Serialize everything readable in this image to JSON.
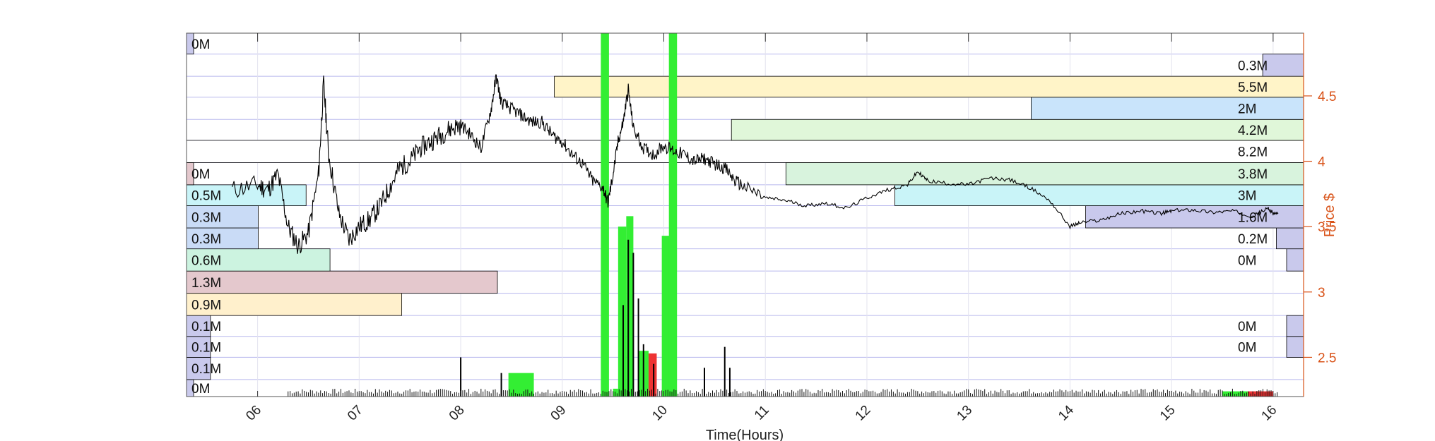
{
  "chart_data": {
    "type": "bar",
    "xlabel": "Time(Hours)",
    "ylabel": "Price $",
    "xlim": [
      5.3,
      16.3
    ],
    "ylim": [
      2.2,
      4.98
    ],
    "x_ticks": [
      6,
      7,
      8,
      9,
      10,
      11,
      12,
      13,
      14,
      15,
      16
    ],
    "x_tick_labels": [
      "06",
      "07",
      "08",
      "09",
      "10",
      "11",
      "12",
      "13",
      "14",
      "15",
      "16"
    ],
    "y_ticks": [
      2.5,
      3,
      3.5,
      4,
      4.5
    ],
    "y_tick_labels": [
      "2.5",
      "3",
      "3.5",
      "4",
      "4.5"
    ],
    "grid": true,
    "colors": {
      "price_line": "#000000",
      "volume_up": "#33ee33",
      "volume_down": "#ee3333",
      "axis_right": "#d95319",
      "grid": "#b8b8ee",
      "band_border": "#000000"
    },
    "price_levels": [
      2.2,
      2.33,
      2.5,
      2.66,
      2.82,
      2.99,
      3.16,
      3.33,
      3.49,
      3.66,
      3.82,
      3.99,
      4.16,
      4.32,
      4.49,
      4.65,
      4.82,
      4.98
    ],
    "left_profile": [
      {
        "label": "0M",
        "low": 2.2,
        "high": 2.33,
        "value": 0.02,
        "color": "#c9c9ec"
      },
      {
        "label": "0.1M",
        "low": 2.33,
        "high": 2.5,
        "value": 0.1,
        "color": "#c9c9ec"
      },
      {
        "label": "0.1M",
        "low": 2.5,
        "high": 2.66,
        "value": 0.1,
        "color": "#c9c9ec"
      },
      {
        "label": "0.1M",
        "low": 2.66,
        "high": 2.82,
        "value": 0.1,
        "color": "#c9c9ec"
      },
      {
        "label": "0.9M",
        "low": 2.82,
        "high": 2.99,
        "value": 0.9,
        "color": "#fff0cc"
      },
      {
        "label": "1.3M",
        "low": 2.99,
        "high": 3.16,
        "value": 1.3,
        "color": "#e4c8cd"
      },
      {
        "label": "0.6M",
        "low": 3.16,
        "high": 3.33,
        "value": 0.6,
        "color": "#ccf3e0"
      },
      {
        "label": "0.3M",
        "low": 3.33,
        "high": 3.49,
        "value": 0.3,
        "color": "#c9dbf6"
      },
      {
        "label": "0.3M",
        "low": 3.49,
        "high": 3.66,
        "value": 0.3,
        "color": "#c9dbf6"
      },
      {
        "label": "0.5M",
        "low": 3.66,
        "high": 3.82,
        "value": 0.5,
        "color": "#c9f4f8"
      },
      {
        "label": "0M",
        "low": 3.82,
        "high": 3.99,
        "value": 0.02,
        "color": "#e4c8cd"
      },
      {
        "label": "0M",
        "low": 4.82,
        "high": 4.98,
        "value": 0.02,
        "color": "#c9c9ec"
      }
    ],
    "right_profile": [
      {
        "label": "0M",
        "low": 2.5,
        "high": 2.66,
        "value": 0.05,
        "color": "#c9c9ec"
      },
      {
        "label": "0M",
        "low": 2.66,
        "high": 2.82,
        "value": 0.05,
        "color": "#c9c9ec"
      },
      {
        "label": "0M",
        "low": 3.16,
        "high": 3.33,
        "value": 0.05,
        "color": "#c9c9ec"
      },
      {
        "label": "0.2M",
        "low": 3.33,
        "high": 3.49,
        "value": 0.2,
        "color": "#c9c9ec"
      },
      {
        "label": "1.6M",
        "low": 3.49,
        "high": 3.66,
        "value": 1.6,
        "color": "#c9c9ec"
      },
      {
        "label": "3M",
        "low": 3.66,
        "high": 3.82,
        "value": 3.0,
        "color": "#c9f4f8"
      },
      {
        "label": "3.8M",
        "low": 3.82,
        "high": 3.99,
        "value": 3.8,
        "color": "#d8f3dd"
      },
      {
        "label": "8.2M",
        "low": 3.99,
        "high": 4.16,
        "value": 8.2,
        "color": "#ffffff"
      },
      {
        "label": "4.2M",
        "low": 4.16,
        "high": 4.32,
        "value": 4.2,
        "color": "#e0f7d9"
      },
      {
        "label": "2M",
        "low": 4.32,
        "high": 4.49,
        "value": 2.0,
        "color": "#c9e4fb"
      },
      {
        "label": "5.5M",
        "low": 4.49,
        "high": 4.65,
        "value": 5.5,
        "color": "#fff4c8"
      },
      {
        "label": "0.3M",
        "low": 4.65,
        "high": 4.82,
        "value": 0.3,
        "color": "#c9c9ec"
      }
    ],
    "left_profile_scale_M": 1.3,
    "right_profile_scale_M": 8.2,
    "price_series": {
      "x": [
        5.75,
        6.0,
        6.1,
        6.2,
        6.3,
        6.4,
        6.5,
        6.6,
        6.65,
        6.7,
        6.8,
        6.9,
        7.0,
        7.1,
        7.2,
        7.3,
        7.4,
        7.5,
        7.6,
        7.7,
        7.8,
        7.9,
        8.0,
        8.1,
        8.2,
        8.3,
        8.35,
        8.4,
        8.5,
        8.6,
        8.7,
        8.8,
        8.9,
        9.0,
        9.1,
        9.2,
        9.3,
        9.4,
        9.45,
        9.5,
        9.55,
        9.6,
        9.65,
        9.7,
        9.8,
        9.9,
        10.0,
        10.1,
        10.2,
        10.3,
        10.4,
        10.5,
        10.6,
        10.7,
        10.8,
        11.0,
        11.2,
        11.4,
        11.6,
        11.8,
        12.0,
        12.2,
        12.4,
        12.5,
        12.6,
        12.8,
        13.0,
        13.2,
        13.4,
        13.6,
        13.8,
        14.0,
        14.1,
        14.3,
        14.5,
        14.7,
        14.9,
        15.0,
        15.2,
        15.4,
        15.6,
        15.8,
        15.95,
        16.0,
        16.05
      ],
      "y": [
        3.78,
        3.82,
        3.78,
        3.9,
        3.5,
        3.35,
        3.45,
        3.9,
        4.6,
        4.05,
        3.6,
        3.4,
        3.5,
        3.55,
        3.65,
        3.8,
        3.95,
        4.0,
        4.1,
        4.15,
        4.2,
        4.25,
        4.28,
        4.2,
        4.1,
        4.4,
        4.65,
        4.45,
        4.4,
        4.35,
        4.3,
        4.3,
        4.2,
        4.15,
        4.05,
        3.98,
        3.85,
        3.8,
        3.68,
        3.9,
        4.15,
        4.3,
        4.55,
        4.25,
        4.1,
        4.05,
        4.12,
        4.08,
        4.05,
        4.0,
        4.02,
        3.98,
        3.95,
        3.85,
        3.8,
        3.72,
        3.7,
        3.66,
        3.68,
        3.64,
        3.72,
        3.78,
        3.82,
        3.92,
        3.85,
        3.83,
        3.82,
        3.87,
        3.86,
        3.8,
        3.7,
        3.5,
        3.53,
        3.55,
        3.6,
        3.62,
        3.6,
        3.62,
        3.63,
        3.61,
        3.62,
        3.58,
        3.64,
        3.6,
        3.6
      ]
    },
    "volume_highlights": [
      {
        "x_start": 8.47,
        "x_end": 8.72,
        "low": 2.2,
        "high": 2.38,
        "color": "#33ee33"
      },
      {
        "x_start": 9.38,
        "x_end": 9.46,
        "low": 2.2,
        "high": 4.98,
        "color": "#33ee33"
      },
      {
        "x_start": 9.5,
        "x_end": 9.55,
        "low": 2.2,
        "high": 2.26,
        "color": "#33ee33"
      },
      {
        "x_start": 9.55,
        "x_end": 9.63,
        "low": 2.2,
        "high": 3.5,
        "color": "#33ee33"
      },
      {
        "x_start": 9.63,
        "x_end": 9.7,
        "low": 2.2,
        "high": 3.58,
        "color": "#33ee33"
      },
      {
        "x_start": 9.75,
        "x_end": 9.85,
        "low": 2.2,
        "high": 2.55,
        "color": "#33ee33"
      },
      {
        "x_start": 9.85,
        "x_end": 9.93,
        "low": 2.2,
        "high": 2.53,
        "color": "#ee3333"
      },
      {
        "x_start": 9.98,
        "x_end": 10.1,
        "low": 2.2,
        "high": 3.43,
        "color": "#33ee33"
      },
      {
        "x_start": 10.05,
        "x_end": 10.13,
        "low": 2.2,
        "high": 4.98,
        "color": "#33ee33"
      },
      {
        "x_start": 15.5,
        "x_end": 15.75,
        "low": 2.2,
        "high": 2.24,
        "color": "#33ee33"
      },
      {
        "x_start": 15.75,
        "x_end": 16.0,
        "low": 2.2,
        "high": 2.24,
        "color": "#ee3333"
      }
    ],
    "volume_spikes": [
      {
        "x": 8.0,
        "value": 2.5
      },
      {
        "x": 8.4,
        "value": 2.38
      },
      {
        "x": 9.6,
        "value": 2.9
      },
      {
        "x": 9.65,
        "value": 3.4
      },
      {
        "x": 9.7,
        "value": 3.3
      },
      {
        "x": 9.75,
        "value": 2.95
      },
      {
        "x": 9.8,
        "value": 2.6
      },
      {
        "x": 9.9,
        "value": 2.45
      },
      {
        "x": 10.4,
        "value": 2.42
      },
      {
        "x": 10.6,
        "value": 2.58
      },
      {
        "x": 10.65,
        "value": 2.42
      }
    ]
  }
}
